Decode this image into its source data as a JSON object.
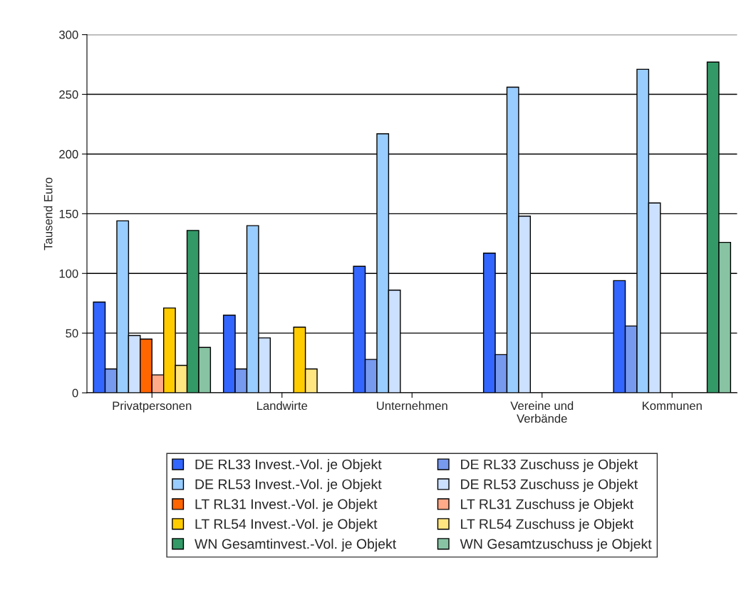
{
  "chart_data": {
    "type": "bar",
    "ylabel": "Tausend Euro",
    "categories": [
      "Privatpersonen",
      "Landwirte",
      "Unternehmen",
      "Vereine und\nVerbände",
      "Kommunen"
    ],
    "series": [
      {
        "name": "DE RL33 Invest.-Vol. je Objekt",
        "color": "#3366ff",
        "values": [
          76,
          65,
          106,
          117,
          94
        ]
      },
      {
        "name": "DE RL33 Zuschuss je Objekt",
        "color": "#7799ee",
        "values": [
          20,
          20,
          28,
          32,
          56
        ]
      },
      {
        "name": "DE RL53 Invest.-Vol. je Objekt",
        "color": "#99ccff",
        "values": [
          144,
          140,
          217,
          256,
          271
        ]
      },
      {
        "name": "DE RL53 Zuschuss je Objekt",
        "color": "#cce0ff",
        "values": [
          48,
          46,
          86,
          148,
          159
        ]
      },
      {
        "name": "LT RL31 Invest.-Vol. je Objekt",
        "color": "#ff6600",
        "values": [
          45,
          null,
          null,
          null,
          null
        ]
      },
      {
        "name": "LT RL31 Zuschuss je Objekt",
        "color": "#ffaa88",
        "values": [
          15,
          null,
          null,
          null,
          null
        ]
      },
      {
        "name": "LT RL54 Invest.-Vol. je Objekt",
        "color": "#ffcc00",
        "values": [
          71,
          55,
          null,
          null,
          null
        ]
      },
      {
        "name": "LT RL54 Zuschuss je Objekt",
        "color": "#ffe680",
        "values": [
          23,
          20,
          null,
          null,
          null
        ]
      },
      {
        "name": "WN Gesamtinvest.-Vol. je Objekt",
        "color": "#339966",
        "values": [
          136,
          null,
          null,
          null,
          277
        ]
      },
      {
        "name": "WN Gesamtzuschuss je Objekt",
        "color": "#88c4a4",
        "values": [
          38,
          null,
          null,
          null,
          126
        ]
      }
    ],
    "ylim": [
      0,
      300
    ],
    "yticks": [
      0,
      50,
      100,
      150,
      200,
      250,
      300
    ],
    "grid": "y",
    "legend": "bottom"
  }
}
